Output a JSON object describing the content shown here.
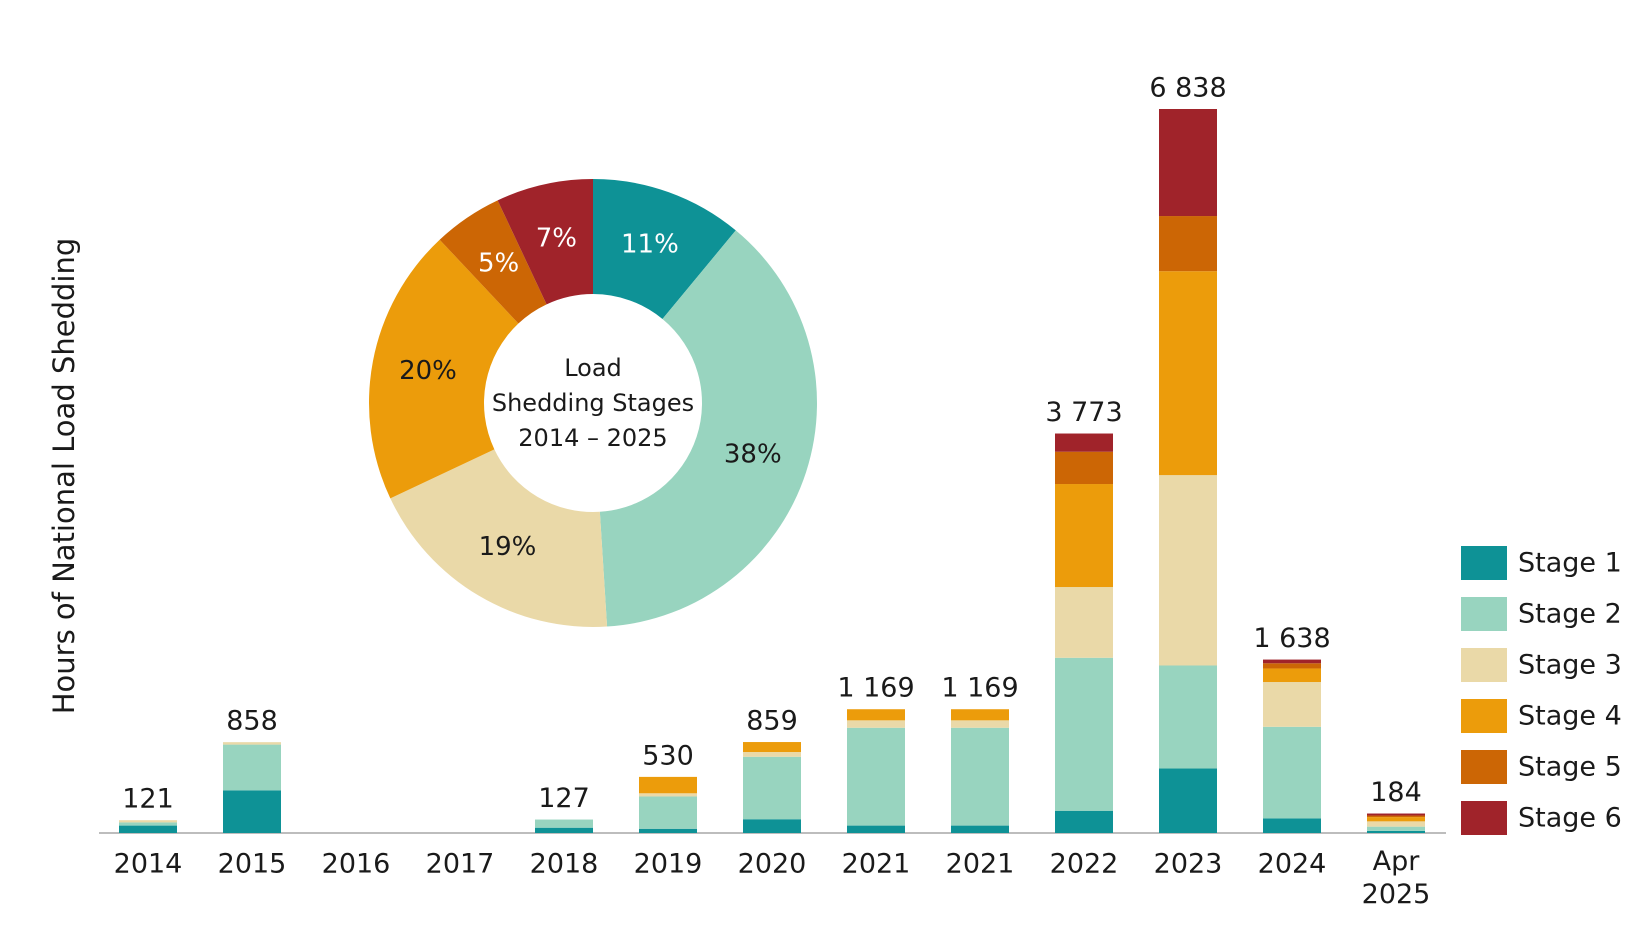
{
  "chart_data": [
    {
      "type": "stacked_bar",
      "y_label": "Hours of National Load Shedding",
      "categories": [
        "2014",
        "2015",
        "2016",
        "2017",
        "2018",
        "2019",
        "2020",
        "2021",
        "2021",
        "2022",
        "2023",
        "2024",
        "Apr 2025"
      ],
      "series": [
        {
          "name": "Stage 1",
          "color": "#0e9296",
          "values": [
            70,
            403,
            0,
            0,
            50,
            40,
            130,
            70,
            70,
            210,
            609,
            138,
            20
          ]
        },
        {
          "name": "Stage 2",
          "color": "#98d4bf",
          "values": [
            30,
            432,
            0,
            0,
            77,
            305,
            590,
            924,
            924,
            1445,
            973,
            865,
            40
          ]
        },
        {
          "name": "Stage 3",
          "color": "#ead9a8",
          "values": [
            21,
            23,
            0,
            0,
            0,
            30,
            45,
            70,
            70,
            668,
            1798,
            423,
            50
          ]
        },
        {
          "name": "Stage 4",
          "color": "#ec9c0b",
          "values": [
            0,
            0,
            0,
            0,
            0,
            155,
            94,
            105,
            105,
            973,
            1926,
            128,
            40
          ]
        },
        {
          "name": "Stage 5",
          "color": "#cc6605",
          "values": [
            0,
            0,
            0,
            0,
            0,
            0,
            0,
            0,
            0,
            305,
            521,
            49,
            15
          ]
        },
        {
          "name": "Stage 6",
          "color": "#a0232a",
          "values": [
            0,
            0,
            0,
            0,
            0,
            0,
            0,
            0,
            0,
            172,
            1011,
            35,
            19
          ]
        }
      ],
      "total_labels": [
        "121",
        "858",
        null,
        null,
        "127",
        "530",
        "859",
        "1 169",
        "1 169",
        "3 773",
        "6 838",
        "1 638",
        "184"
      ],
      "legend": "right-bottom"
    },
    {
      "type": "donut",
      "center_label": [
        "Load",
        "Shedding Stages",
        "2014 – 2025"
      ],
      "values": [
        11,
        38,
        19,
        20,
        5,
        7
      ],
      "value_labels": [
        "11%",
        "38%",
        "19%",
        "20%",
        "5%",
        "7%"
      ],
      "colors": [
        "#0e9296",
        "#98d4bf",
        "#ead9a8",
        "#ec9c0b",
        "#cc6605",
        "#a0232a"
      ]
    }
  ]
}
